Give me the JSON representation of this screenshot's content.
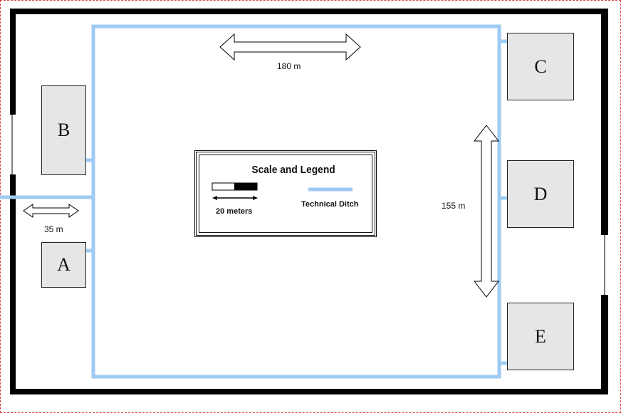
{
  "buildings": {
    "a": "A",
    "b": "B",
    "c": "C",
    "d": "D",
    "e": "E"
  },
  "dimensions": {
    "width_top": "180 m",
    "height_right": "155 m",
    "gap_left": "35 m"
  },
  "legend": {
    "title": "Scale and Legend",
    "scale_label": "20 meters",
    "ditch_label": "Technical Ditch"
  },
  "colors": {
    "ditch": "#9ecbf2",
    "wall": "#000000",
    "building_fill": "#e6e6e6"
  }
}
